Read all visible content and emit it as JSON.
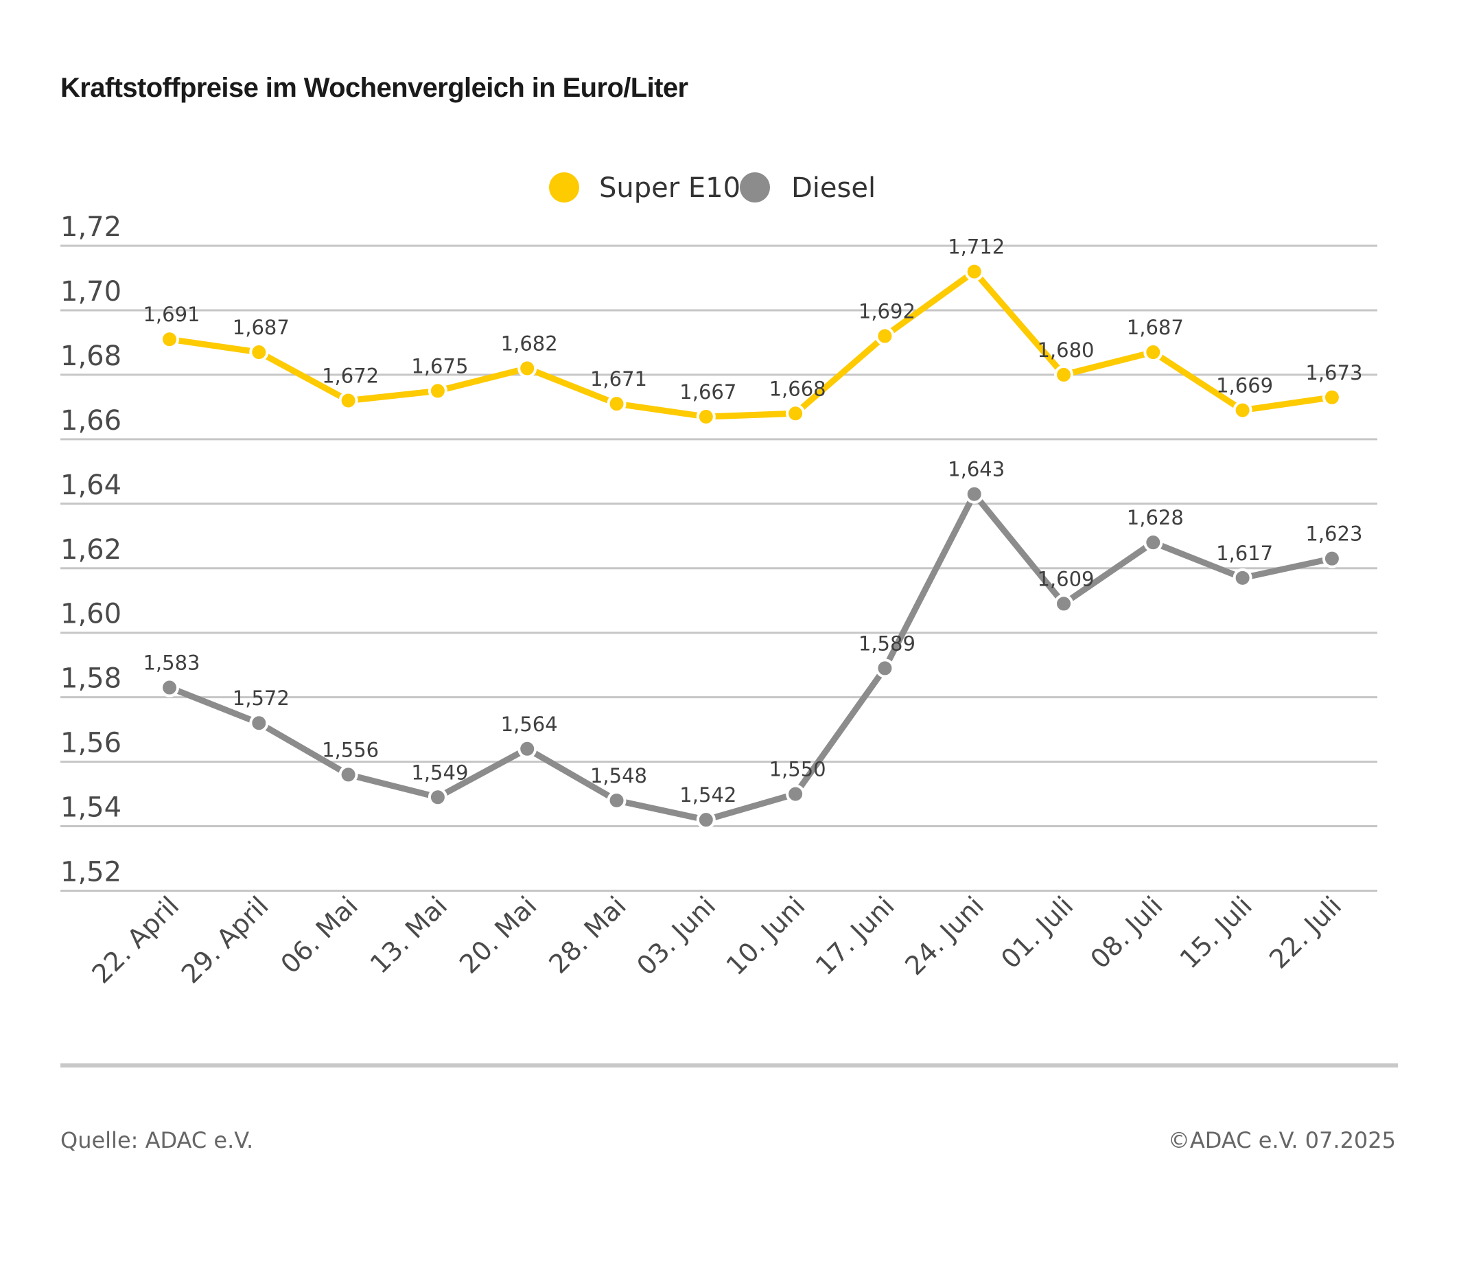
{
  "chart_data": {
    "type": "line",
    "title": "Kraftstoffpreise im Wochenvergleich in Euro/Liter",
    "xlabel": "",
    "ylabel": "",
    "ylim": [
      1.52,
      1.72
    ],
    "yticks": [
      1.72,
      1.7,
      1.68,
      1.66,
      1.64,
      1.62,
      1.6,
      1.58,
      1.56,
      1.54,
      1.52
    ],
    "ytick_labels": [
      "1,72",
      "1,70",
      "1,68",
      "1,66",
      "1,64",
      "1,62",
      "1,60",
      "1,58",
      "1,56",
      "1,54",
      "1,52"
    ],
    "grid": true,
    "legend_position": "top-center",
    "categories": [
      "22. April",
      "29. April",
      "06. Mai",
      "13. Mai",
      "20. Mai",
      "28. Mai",
      "03. Juni",
      "10. Juni",
      "17. Juni",
      "24. Juni",
      "01. Juli",
      "08. Juli",
      "15. Juli",
      "22. Juli"
    ],
    "series": [
      {
        "name": "Super E10",
        "color": "#FECA00",
        "values": [
          1.691,
          1.687,
          1.672,
          1.675,
          1.682,
          1.671,
          1.667,
          1.668,
          1.692,
          1.712,
          1.68,
          1.687,
          1.669,
          1.673
        ],
        "labels": [
          "1,691",
          "1,687",
          "1,672",
          "1,675",
          "1,682",
          "1,671",
          "1,667",
          "1,668",
          "1,692",
          "1,712",
          "1,680",
          "1,687",
          "1,669",
          "1,673"
        ]
      },
      {
        "name": "Diesel",
        "color": "#8C8C8C",
        "values": [
          1.583,
          1.572,
          1.556,
          1.549,
          1.564,
          1.548,
          1.542,
          1.55,
          1.589,
          1.643,
          1.609,
          1.628,
          1.617,
          1.623
        ],
        "labels": [
          "1,583",
          "1,572",
          "1,556",
          "1,549",
          "1,564",
          "1,548",
          "1,542",
          "1,550",
          "1,589",
          "1,643",
          "1,609",
          "1,628",
          "1,617",
          "1,623"
        ]
      }
    ]
  },
  "footer": {
    "source": "Quelle: ADAC e.V.",
    "copyright": "©ADAC e.V. 07.2025"
  },
  "colors": {
    "grid": "#C6C6C6",
    "separator": "#C8C8C8",
    "text": "#3F3F3F"
  }
}
